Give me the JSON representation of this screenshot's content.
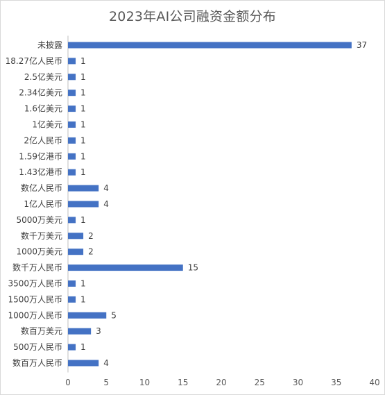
{
  "chart_data": {
    "type": "bar",
    "orientation": "horizontal",
    "title": "2023年AI公司融资金额分布",
    "xlabel": "",
    "ylabel": "",
    "categories": [
      "未披露",
      "18.27亿人民币",
      "2.5亿美元",
      "2.34亿美元",
      "1.6亿美元",
      "1亿美元",
      "2亿人民币",
      "1.59亿港币",
      "1.43亿港币",
      "数亿人民币",
      "1亿人民币",
      "5000万美元",
      "数千万美元",
      "1000万美元",
      "数千万人民币",
      "3500万人民币",
      "1500万人民币",
      "1000万人民币",
      "数百万美元",
      "500万人民币",
      "数百万人民币"
    ],
    "values": [
      37,
      1,
      1,
      1,
      1,
      1,
      1,
      1,
      1,
      4,
      4,
      1,
      2,
      2,
      15,
      1,
      1,
      5,
      3,
      1,
      4
    ],
    "xlim": [
      0,
      40
    ],
    "xticks": [
      0,
      5,
      10,
      15,
      20,
      25,
      30,
      35,
      40
    ],
    "data_labels": true,
    "grid": false,
    "legend": "none",
    "bar_color": "#4472c4"
  }
}
